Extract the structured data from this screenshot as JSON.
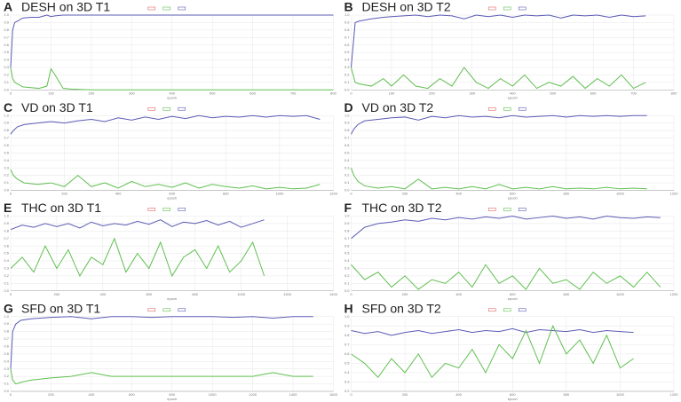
{
  "chart_data": [
    {
      "type": "line",
      "label": "A",
      "title": "DESH on 3D T1",
      "x_label": "epoch",
      "xlim": [
        0,
        800
      ],
      "xticks": [
        0,
        100,
        200,
        300,
        400,
        500,
        600,
        700,
        800
      ],
      "ylim": [
        0,
        1
      ],
      "yticks": [
        {
          "value": 0,
          "label": "0.0"
        },
        0.1,
        0.2,
        0.3,
        0.4,
        0.5,
        0.6,
        0.7,
        0.8,
        0.9,
        {
          "value": 1,
          "label": "1.0"
        }
      ],
      "x": [
        0,
        5,
        10,
        20,
        30,
        50,
        70,
        90,
        100,
        110,
        130,
        150,
        200,
        300,
        400,
        500,
        600,
        700,
        800
      ],
      "series": [
        {
          "color": "#5b5bb5",
          "values": [
            0.3,
            0.8,
            0.9,
            0.93,
            0.96,
            0.97,
            0.97,
            1.0,
            0.98,
            0.99,
            1.0,
            1.0,
            1.0,
            1.0,
            1.0,
            1.0,
            1.0,
            1.0,
            1.0
          ]
        },
        {
          "color": "#5fbf4f",
          "values": [
            0.3,
            0.15,
            0.1,
            0.07,
            0.04,
            0.03,
            0.02,
            0.05,
            0.28,
            0.2,
            0.02,
            0.01,
            0,
            0,
            0,
            0,
            0,
            0,
            0
          ]
        }
      ]
    },
    {
      "type": "line",
      "label": "B",
      "title": "DESH on 3D T2",
      "x_label": "epoch",
      "xlim": [
        0,
        800
      ],
      "xticks": [
        0,
        100,
        200,
        300,
        400,
        500,
        600,
        700,
        800
      ],
      "ylim": [
        0,
        1
      ],
      "yticks": [
        {
          "value": 0,
          "label": "0.0"
        },
        0.1,
        0.2,
        0.3,
        0.4,
        0.5,
        0.6,
        0.7,
        0.8,
        0.9,
        {
          "value": 1,
          "label": "1.0"
        }
      ],
      "x": [
        0,
        10,
        20,
        50,
        80,
        100,
        130,
        160,
        190,
        220,
        250,
        280,
        310,
        340,
        370,
        400,
        430,
        460,
        490,
        520,
        550,
        580,
        610,
        640,
        670,
        700,
        730
      ],
      "series": [
        {
          "color": "#5b5bb5",
          "values": [
            0.3,
            0.9,
            0.92,
            0.95,
            0.97,
            0.98,
            0.99,
            1.0,
            0.98,
            1.0,
            0.99,
            0.95,
            1.0,
            0.98,
            1.0,
            0.97,
            1.0,
            0.99,
            1.0,
            0.96,
            1.0,
            0.99,
            1.0,
            0.97,
            1.0,
            0.98,
            0.99
          ]
        },
        {
          "color": "#5fbf4f",
          "values": [
            0.3,
            0.1,
            0.08,
            0.05,
            0.15,
            0.05,
            0.2,
            0.05,
            0.02,
            0.15,
            0.05,
            0.3,
            0.1,
            0.02,
            0.15,
            0.05,
            0.2,
            0.02,
            0.1,
            0.05,
            0.18,
            0.02,
            0.15,
            0.05,
            0.2,
            0.02,
            0.1
          ]
        }
      ]
    },
    {
      "type": "line",
      "label": "C",
      "title": "VD on 3D T1",
      "x_label": "epoch",
      "xlim": [
        0,
        1200
      ],
      "xticks": [
        0,
        200,
        400,
        600,
        800,
        1000,
        1200
      ],
      "ylim": [
        0,
        1
      ],
      "yticks": [
        {
          "value": 0,
          "label": "0.0"
        },
        0.1,
        0.2,
        0.3,
        0.4,
        0.5,
        0.6,
        0.7,
        0.8,
        0.9,
        {
          "value": 1,
          "label": "1.0"
        }
      ],
      "x": [
        0,
        10,
        25,
        50,
        100,
        150,
        200,
        250,
        300,
        350,
        400,
        450,
        500,
        550,
        600,
        650,
        700,
        750,
        800,
        850,
        900,
        950,
        1000,
        1050,
        1100,
        1150
      ],
      "series": [
        {
          "color": "#5b5bb5",
          "values": [
            0.75,
            0.8,
            0.85,
            0.88,
            0.9,
            0.92,
            0.9,
            0.93,
            0.95,
            0.92,
            0.97,
            0.94,
            0.98,
            0.95,
            0.99,
            0.96,
            1.0,
            0.97,
            0.99,
            0.98,
            1.0,
            0.98,
            1.0,
            0.99,
            1.0,
            0.95
          ]
        },
        {
          "color": "#5fbf4f",
          "values": [
            0.28,
            0.2,
            0.15,
            0.1,
            0.08,
            0.1,
            0.05,
            0.2,
            0.05,
            0.1,
            0.03,
            0.12,
            0.05,
            0.08,
            0.04,
            0.1,
            0.03,
            0.08,
            0.05,
            0.03,
            0.06,
            0.02,
            0.04,
            0.02,
            0.03,
            0.08
          ]
        }
      ]
    },
    {
      "type": "line",
      "label": "D",
      "title": "VD on 3D T2",
      "x_label": "epoch",
      "xlim": [
        0,
        1200
      ],
      "xticks": [
        0,
        200,
        400,
        600,
        800,
        1000,
        1200
      ],
      "ylim": [
        0,
        1
      ],
      "yticks": [
        {
          "value": 0,
          "label": "0.0"
        },
        0.1,
        0.2,
        0.3,
        0.4,
        0.5,
        0.6,
        0.7,
        0.8,
        0.9,
        {
          "value": 1,
          "label": "1.0"
        }
      ],
      "x": [
        0,
        10,
        25,
        50,
        100,
        150,
        200,
        250,
        300,
        350,
        400,
        450,
        500,
        550,
        600,
        650,
        700,
        750,
        800,
        850,
        900,
        950,
        1000,
        1050,
        1100
      ],
      "series": [
        {
          "color": "#5b5bb5",
          "values": [
            0.75,
            0.82,
            0.88,
            0.93,
            0.95,
            0.97,
            0.98,
            0.94,
            0.99,
            0.97,
            1.0,
            0.98,
            0.99,
            0.97,
            1.0,
            0.98,
            0.99,
            1.0,
            0.98,
            1.0,
            0.99,
            1.0,
            0.99,
            1.0,
            1.0
          ]
        },
        {
          "color": "#5fbf4f",
          "values": [
            0.3,
            0.2,
            0.12,
            0.06,
            0.03,
            0.05,
            0.02,
            0.15,
            0.02,
            0.04,
            0.02,
            0.05,
            0.02,
            0.08,
            0.02,
            0.04,
            0.02,
            0.05,
            0.02,
            0.03,
            0.02,
            0.04,
            0.02,
            0.03,
            0.02
          ]
        }
      ]
    },
    {
      "type": "line",
      "label": "E",
      "title": "THC on 3D T1",
      "x_label": "epoch",
      "xlim": [
        0,
        1400
      ],
      "xticks": [
        0,
        200,
        400,
        600,
        800,
        1000,
        1200,
        1400
      ],
      "ylim": [
        0,
        1
      ],
      "yticks": [
        {
          "value": 0,
          "label": "0.0"
        },
        0.1,
        0.2,
        0.3,
        0.4,
        0.5,
        0.6,
        0.7,
        0.8,
        0.9,
        {
          "value": 1,
          "label": "1.0"
        }
      ],
      "x": [
        0,
        50,
        100,
        150,
        200,
        250,
        300,
        350,
        400,
        450,
        500,
        550,
        600,
        650,
        700,
        750,
        800,
        850,
        900,
        950,
        1000,
        1050,
        1100
      ],
      "series": [
        {
          "color": "#5b5bb5",
          "values": [
            0.82,
            0.88,
            0.85,
            0.9,
            0.86,
            0.9,
            0.84,
            0.92,
            0.87,
            0.9,
            0.88,
            0.93,
            0.89,
            0.95,
            0.86,
            0.92,
            0.9,
            0.94,
            0.88,
            0.93,
            0.85,
            0.9,
            0.95
          ]
        },
        {
          "color": "#5fbf4f",
          "values": [
            0.3,
            0.45,
            0.25,
            0.6,
            0.3,
            0.55,
            0.2,
            0.45,
            0.35,
            0.7,
            0.25,
            0.5,
            0.3,
            0.65,
            0.2,
            0.45,
            0.55,
            0.3,
            0.6,
            0.25,
            0.4,
            0.65,
            0.2
          ]
        }
      ]
    },
    {
      "type": "line",
      "label": "F",
      "title": "THC on 3D T2",
      "x_label": "epoch",
      "xlim": [
        0,
        1200
      ],
      "xticks": [
        0,
        200,
        400,
        600,
        800,
        1000,
        1200
      ],
      "ylim": [
        0,
        1
      ],
      "yticks": [
        {
          "value": 0,
          "label": "0.0"
        },
        0.1,
        0.2,
        0.3,
        0.4,
        0.5,
        0.6,
        0.7,
        0.8,
        0.9,
        {
          "value": 1,
          "label": "1.0"
        }
      ],
      "x": [
        0,
        50,
        100,
        150,
        200,
        250,
        300,
        350,
        400,
        450,
        500,
        550,
        600,
        650,
        700,
        750,
        800,
        850,
        900,
        950,
        1000,
        1050,
        1100,
        1150
      ],
      "series": [
        {
          "color": "#5b5bb5",
          "values": [
            0.7,
            0.85,
            0.9,
            0.92,
            0.95,
            0.93,
            0.97,
            0.95,
            0.98,
            0.96,
            0.99,
            0.97,
            1.0,
            0.96,
            0.98,
            1.0,
            0.97,
            0.99,
            0.96,
            1.0,
            0.98,
            0.97,
            0.99,
            0.98
          ]
        },
        {
          "color": "#5fbf4f",
          "values": [
            0.35,
            0.15,
            0.25,
            0.05,
            0.2,
            0.02,
            0.15,
            0.1,
            0.25,
            0.05,
            0.35,
            0.1,
            0.2,
            0.02,
            0.3,
            0.1,
            0.15,
            0.02,
            0.25,
            0.1,
            0.2,
            0.05,
            0.25,
            0.05
          ]
        }
      ]
    },
    {
      "type": "line",
      "label": "G",
      "title": "SFD on 3D T1",
      "x_label": "epoch",
      "xlim": [
        0,
        1600
      ],
      "xticks": [
        0,
        200,
        400,
        600,
        800,
        1000,
        1200,
        1400,
        1600
      ],
      "ylim": [
        0,
        1
      ],
      "yticks": [
        {
          "value": 0,
          "label": "0.0"
        },
        0.1,
        0.2,
        0.3,
        0.4,
        0.5,
        0.6,
        0.7,
        0.8,
        0.9,
        {
          "value": 1,
          "label": "1.0"
        }
      ],
      "x": [
        0,
        10,
        25,
        50,
        100,
        200,
        300,
        400,
        500,
        600,
        700,
        800,
        900,
        1000,
        1100,
        1200,
        1300,
        1400,
        1500
      ],
      "series": [
        {
          "color": "#5b5bb5",
          "values": [
            0.3,
            0.8,
            0.9,
            0.95,
            0.97,
            0.99,
            1.0,
            0.97,
            1.0,
            1.0,
            0.99,
            1.0,
            1.0,
            1.0,
            0.99,
            1.0,
            0.98,
            1.0,
            1.0
          ]
        },
        {
          "color": "#5fbf4f",
          "values": [
            0.3,
            0.15,
            0.1,
            0.12,
            0.15,
            0.18,
            0.2,
            0.25,
            0.2,
            0.2,
            0.2,
            0.2,
            0.2,
            0.2,
            0.2,
            0.2,
            0.25,
            0.2,
            0.2
          ]
        }
      ]
    },
    {
      "type": "line",
      "label": "H",
      "title": "SFD on 3D T2",
      "x_label": "epoch",
      "xlim": [
        0,
        1200
      ],
      "xticks": [
        0,
        200,
        400,
        600,
        800,
        1000,
        1200
      ],
      "ylim": [
        0.2,
        1
      ],
      "yticks": [
        0.2,
        0.3,
        0.4,
        0.5,
        0.6,
        0.7,
        0.8,
        0.9,
        {
          "value": 1,
          "label": "1.0"
        }
      ],
      "x": [
        0,
        50,
        100,
        150,
        200,
        250,
        300,
        350,
        400,
        450,
        500,
        550,
        600,
        650,
        700,
        750,
        800,
        850,
        900,
        950,
        1000,
        1050
      ],
      "series": [
        {
          "color": "#5b5bb5",
          "values": [
            0.85,
            0.82,
            0.84,
            0.8,
            0.83,
            0.85,
            0.82,
            0.84,
            0.86,
            0.83,
            0.85,
            0.84,
            0.87,
            0.83,
            0.86,
            0.85,
            0.84,
            0.86,
            0.83,
            0.85,
            0.84,
            0.83
          ]
        },
        {
          "color": "#5fbf4f",
          "values": [
            0.6,
            0.5,
            0.35,
            0.55,
            0.4,
            0.6,
            0.35,
            0.5,
            0.45,
            0.65,
            0.4,
            0.7,
            0.55,
            0.85,
            0.5,
            0.9,
            0.6,
            0.75,
            0.5,
            0.8,
            0.45,
            0.55
          ]
        }
      ]
    }
  ]
}
